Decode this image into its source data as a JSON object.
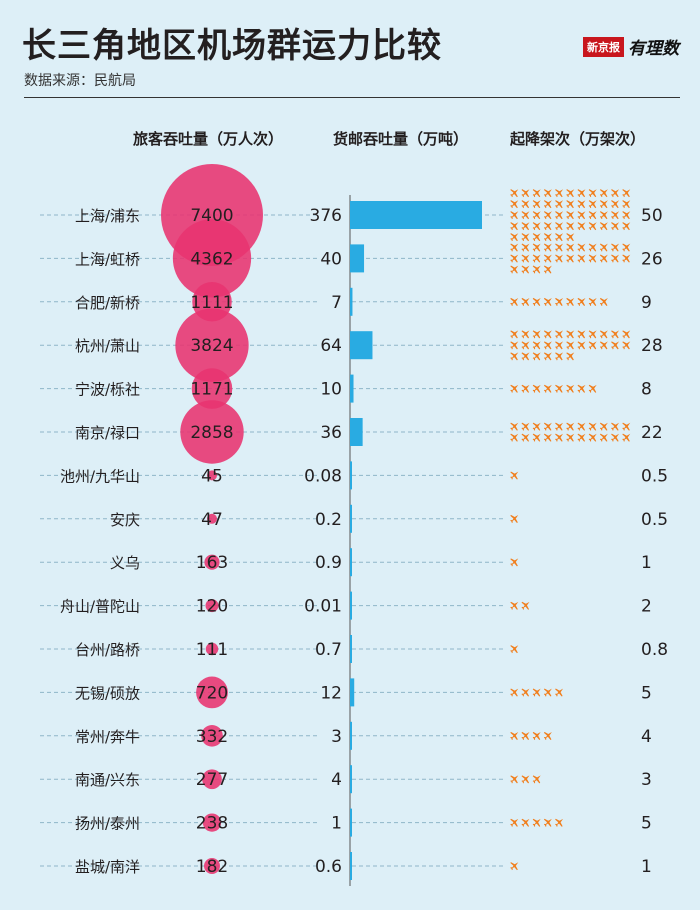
{
  "header": {
    "title": "长三角地区机场群运力比较",
    "source": "数据来源：民航局",
    "brand_box": "新京报",
    "brand_script": "有理数"
  },
  "columns": {
    "passenger": "旅客吞吐量（万人次）",
    "cargo": "货邮吞吐量（万吨）",
    "flights": "起降架次（万架次）"
  },
  "colors": {
    "bubble": "#e8336f",
    "bar": "#29abe2",
    "plane": "#f07f1e",
    "dash": "#8fb6c8"
  },
  "chart_data": {
    "type": "table",
    "title": "长三角地区机场群运力比较",
    "series": [
      {
        "name": "旅客吞吐量（万人次）",
        "values": [
          7400,
          4362,
          1111,
          3824,
          1171,
          2858,
          45,
          47,
          163,
          120,
          111,
          720,
          332,
          277,
          238,
          182
        ]
      },
      {
        "name": "货邮吞吐量（万吨）",
        "values": [
          376,
          40,
          7,
          64,
          10,
          36,
          0.08,
          0.2,
          0.9,
          0.01,
          0.7,
          12,
          3,
          4,
          1,
          0.6
        ]
      },
      {
        "name": "起降架次（万架次）",
        "values": [
          50,
          26,
          9,
          28,
          8,
          22,
          0.5,
          0.5,
          1,
          2,
          0.8,
          5,
          4,
          3,
          5,
          1
        ]
      }
    ],
    "rows": [
      {
        "city": "上海/浦东",
        "passenger": "7400",
        "cargo": "376",
        "flights": "50"
      },
      {
        "city": "上海/虹桥",
        "passenger": "4362",
        "cargo": "40",
        "flights": "26"
      },
      {
        "city": "合肥/新桥",
        "passenger": "1111",
        "cargo": "7",
        "flights": "9"
      },
      {
        "city": "杭州/萧山",
        "passenger": "3824",
        "cargo": "64",
        "flights": "28"
      },
      {
        "city": "宁波/栎社",
        "passenger": "1171",
        "cargo": "10",
        "flights": "8"
      },
      {
        "city": "南京/禄口",
        "passenger": "2858",
        "cargo": "36",
        "flights": "22"
      },
      {
        "city": "池州/九华山",
        "passenger": "45",
        "cargo": "0.08",
        "flights": "0.5"
      },
      {
        "city": "安庆",
        "passenger": "47",
        "cargo": "0.2",
        "flights": "0.5"
      },
      {
        "city": "义乌",
        "passenger": "163",
        "cargo": "0.9",
        "flights": "1"
      },
      {
        "city": "舟山/普陀山",
        "passenger": "120",
        "cargo": "0.01",
        "flights": "2"
      },
      {
        "city": "台州/路桥",
        "passenger": "111",
        "cargo": "0.7",
        "flights": "0.8"
      },
      {
        "city": "无锡/硕放",
        "passenger": "720",
        "cargo": "12",
        "flights": "5"
      },
      {
        "city": "常州/奔牛",
        "passenger": "332",
        "cargo": "3",
        "flights": "4"
      },
      {
        "city": "南通/兴东",
        "passenger": "277",
        "cargo": "4",
        "flights": "3"
      },
      {
        "city": "扬州/泰州",
        "passenger": "238",
        "cargo": "1",
        "flights": "5"
      },
      {
        "city": "盐城/南洋",
        "passenger": "182",
        "cargo": "0.6",
        "flights": "1"
      }
    ]
  }
}
